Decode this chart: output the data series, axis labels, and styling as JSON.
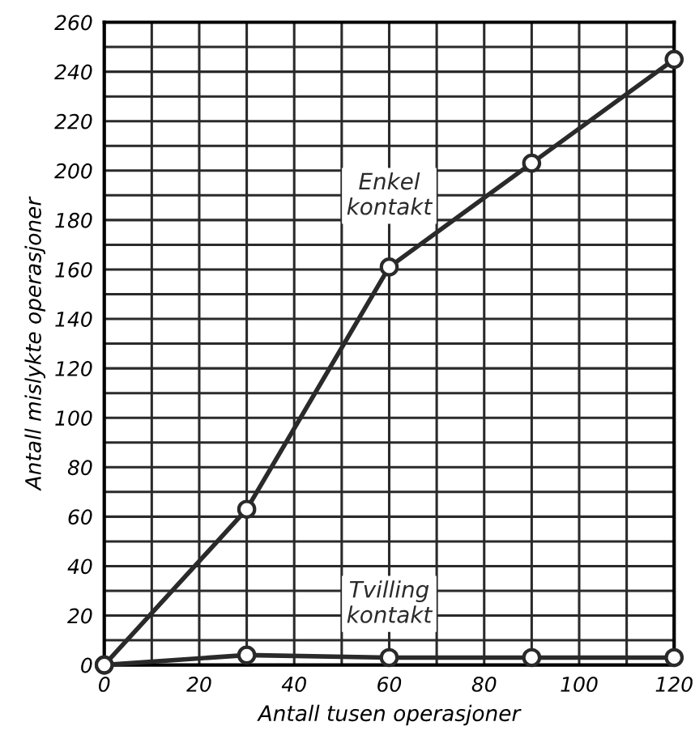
{
  "chart_data": {
    "type": "line",
    "xlabel": "Antall tusen operasjoner",
    "ylabel": "Antall mislykte operasjoner",
    "x": [
      0,
      30,
      60,
      90,
      120
    ],
    "series": [
      {
        "name": "Enkel\nkontakt",
        "color": "#2a2a2a",
        "values": [
          0,
          63,
          161,
          203,
          245
        ]
      },
      {
        "name": "Tvilling\nkontakt",
        "color": "#2a2a2a",
        "values": [
          0,
          4,
          3,
          3,
          3
        ]
      }
    ],
    "xlim": [
      0,
      120
    ],
    "ylim": [
      0,
      260
    ],
    "xticks": [
      0,
      {
        "value": 10,
        "label": null
      },
      20,
      {
        "value": 30,
        "label": null
      },
      40,
      {
        "value": 50,
        "label": null
      },
      60,
      {
        "value": 70,
        "label": null
      },
      80,
      {
        "value": 90,
        "label": null
      },
      100,
      {
        "value": 110,
        "label": null
      },
      120
    ],
    "yticks": [
      0,
      {
        "value": 10,
        "label": null
      },
      20,
      {
        "value": 30,
        "label": null
      },
      40,
      {
        "value": 50,
        "label": null
      },
      60,
      {
        "value": 70,
        "label": null
      },
      80,
      {
        "value": 90,
        "label": null
      },
      100,
      {
        "value": 110,
        "label": null
      },
      120,
      {
        "value": 130,
        "label": null
      },
      140,
      {
        "value": 150,
        "label": null
      },
      160,
      {
        "value": 170,
        "label": null
      },
      180,
      {
        "value": 190,
        "label": null
      },
      200,
      {
        "value": 210,
        "label": null
      },
      220,
      {
        "value": 230,
        "label": null
      },
      240,
      {
        "value": 250,
        "label": null
      },
      260
    ],
    "grid": true,
    "marker": "circle",
    "line_style": "solid",
    "legend": false
  }
}
